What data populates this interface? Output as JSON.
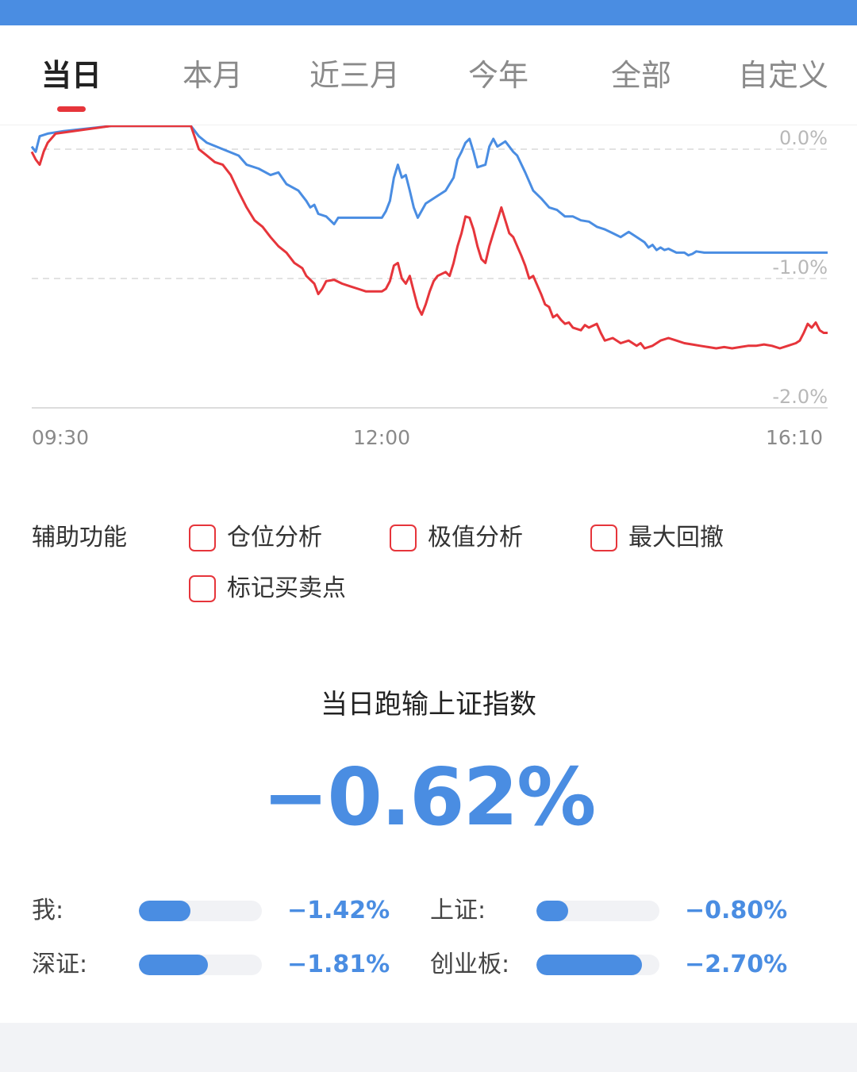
{
  "colors": {
    "accent_blue": "#4a8de2",
    "accent_red": "#e6353b",
    "top_bar": "#4a8de2"
  },
  "tabs": [
    {
      "label": "当日",
      "active": true
    },
    {
      "label": "本月",
      "active": false
    },
    {
      "label": "近三月",
      "active": false
    },
    {
      "label": "今年",
      "active": false
    },
    {
      "label": "全部",
      "active": false
    },
    {
      "label": "自定义",
      "active": false
    }
  ],
  "chart_data": {
    "type": "line",
    "x_ticks": [
      "09:30",
      "12:00",
      "16:10"
    ],
    "y_ticks": [
      "0.0%",
      "-1.0%",
      "-2.0%"
    ],
    "ylim": [
      -2.0,
      0.1
    ],
    "grid": true,
    "series": [
      {
        "color": "#4a8de2",
        "points": [
          [
            0.0,
            0.02
          ],
          [
            0.005,
            -0.02
          ],
          [
            0.01,
            0.1
          ],
          [
            0.02,
            0.12
          ],
          [
            0.04,
            0.14
          ],
          [
            0.1,
            0.18
          ],
          [
            0.2,
            0.18
          ],
          [
            0.21,
            0.1
          ],
          [
            0.22,
            0.05
          ],
          [
            0.24,
            0.0
          ],
          [
            0.26,
            -0.05
          ],
          [
            0.27,
            -0.12
          ],
          [
            0.285,
            -0.15
          ],
          [
            0.3,
            -0.2
          ],
          [
            0.31,
            -0.18
          ],
          [
            0.32,
            -0.27
          ],
          [
            0.335,
            -0.32
          ],
          [
            0.345,
            -0.4
          ],
          [
            0.35,
            -0.45
          ],
          [
            0.355,
            -0.43
          ],
          [
            0.36,
            -0.5
          ],
          [
            0.37,
            -0.52
          ],
          [
            0.38,
            -0.58
          ],
          [
            0.385,
            -0.53
          ],
          [
            0.44,
            -0.53
          ],
          [
            0.445,
            -0.48
          ],
          [
            0.45,
            -0.4
          ],
          [
            0.455,
            -0.22
          ],
          [
            0.46,
            -0.12
          ],
          [
            0.465,
            -0.22
          ],
          [
            0.47,
            -0.2
          ],
          [
            0.475,
            -0.32
          ],
          [
            0.48,
            -0.45
          ],
          [
            0.485,
            -0.53
          ],
          [
            0.495,
            -0.42
          ],
          [
            0.51,
            -0.36
          ],
          [
            0.52,
            -0.32
          ],
          [
            0.53,
            -0.22
          ],
          [
            0.535,
            -0.08
          ],
          [
            0.54,
            -0.02
          ],
          [
            0.545,
            0.05
          ],
          [
            0.55,
            0.08
          ],
          [
            0.555,
            -0.02
          ],
          [
            0.56,
            -0.14
          ],
          [
            0.57,
            -0.12
          ],
          [
            0.575,
            0.02
          ],
          [
            0.58,
            0.08
          ],
          [
            0.585,
            0.02
          ],
          [
            0.59,
            0.04
          ],
          [
            0.595,
            0.06
          ],
          [
            0.6,
            0.02
          ],
          [
            0.605,
            -0.02
          ],
          [
            0.61,
            -0.05
          ],
          [
            0.62,
            -0.18
          ],
          [
            0.63,
            -0.32
          ],
          [
            0.64,
            -0.38
          ],
          [
            0.65,
            -0.45
          ],
          [
            0.66,
            -0.47
          ],
          [
            0.67,
            -0.52
          ],
          [
            0.68,
            -0.52
          ],
          [
            0.69,
            -0.55
          ],
          [
            0.7,
            -0.56
          ],
          [
            0.71,
            -0.6
          ],
          [
            0.72,
            -0.62
          ],
          [
            0.73,
            -0.65
          ],
          [
            0.74,
            -0.68
          ],
          [
            0.75,
            -0.64
          ],
          [
            0.76,
            -0.68
          ],
          [
            0.77,
            -0.72
          ],
          [
            0.775,
            -0.76
          ],
          [
            0.78,
            -0.74
          ],
          [
            0.785,
            -0.78
          ],
          [
            0.79,
            -0.76
          ],
          [
            0.795,
            -0.78
          ],
          [
            0.8,
            -0.77
          ],
          [
            0.81,
            -0.8
          ],
          [
            0.82,
            -0.8
          ],
          [
            0.825,
            -0.82
          ],
          [
            0.83,
            -0.81
          ],
          [
            0.835,
            -0.79
          ],
          [
            0.845,
            -0.8
          ],
          [
            0.85,
            -0.8
          ],
          [
            1.0,
            -0.8
          ]
        ]
      },
      {
        "color": "#e6353b",
        "points": [
          [
            0.0,
            -0.02
          ],
          [
            0.005,
            -0.08
          ],
          [
            0.01,
            -0.12
          ],
          [
            0.015,
            -0.02
          ],
          [
            0.02,
            0.05
          ],
          [
            0.03,
            0.12
          ],
          [
            0.1,
            0.18
          ],
          [
            0.2,
            0.18
          ],
          [
            0.21,
            0.0
          ],
          [
            0.22,
            -0.05
          ],
          [
            0.23,
            -0.1
          ],
          [
            0.24,
            -0.12
          ],
          [
            0.25,
            -0.2
          ],
          [
            0.26,
            -0.33
          ],
          [
            0.27,
            -0.45
          ],
          [
            0.28,
            -0.55
          ],
          [
            0.29,
            -0.6
          ],
          [
            0.3,
            -0.68
          ],
          [
            0.31,
            -0.75
          ],
          [
            0.32,
            -0.8
          ],
          [
            0.33,
            -0.88
          ],
          [
            0.34,
            -0.92
          ],
          [
            0.345,
            -0.98
          ],
          [
            0.355,
            -1.04
          ],
          [
            0.36,
            -1.12
          ],
          [
            0.365,
            -1.08
          ],
          [
            0.37,
            -1.02
          ],
          [
            0.38,
            -1.01
          ],
          [
            0.39,
            -1.04
          ],
          [
            0.4,
            -1.06
          ],
          [
            0.41,
            -1.08
          ],
          [
            0.42,
            -1.1
          ],
          [
            0.43,
            -1.1
          ],
          [
            0.44,
            -1.1
          ],
          [
            0.445,
            -1.08
          ],
          [
            0.45,
            -1.02
          ],
          [
            0.455,
            -0.9
          ],
          [
            0.46,
            -0.88
          ],
          [
            0.465,
            -1.0
          ],
          [
            0.47,
            -1.04
          ],
          [
            0.475,
            -0.98
          ],
          [
            0.48,
            -1.1
          ],
          [
            0.485,
            -1.22
          ],
          [
            0.49,
            -1.28
          ],
          [
            0.495,
            -1.2
          ],
          [
            0.5,
            -1.1
          ],
          [
            0.505,
            -1.02
          ],
          [
            0.51,
            -0.98
          ],
          [
            0.52,
            -0.95
          ],
          [
            0.525,
            -0.98
          ],
          [
            0.53,
            -0.88
          ],
          [
            0.535,
            -0.75
          ],
          [
            0.54,
            -0.65
          ],
          [
            0.545,
            -0.52
          ],
          [
            0.55,
            -0.53
          ],
          [
            0.555,
            -0.62
          ],
          [
            0.56,
            -0.75
          ],
          [
            0.565,
            -0.85
          ],
          [
            0.57,
            -0.88
          ],
          [
            0.575,
            -0.75
          ],
          [
            0.58,
            -0.65
          ],
          [
            0.585,
            -0.55
          ],
          [
            0.59,
            -0.45
          ],
          [
            0.595,
            -0.55
          ],
          [
            0.6,
            -0.65
          ],
          [
            0.605,
            -0.68
          ],
          [
            0.61,
            -0.75
          ],
          [
            0.615,
            -0.82
          ],
          [
            0.62,
            -0.9
          ],
          [
            0.625,
            -1.0
          ],
          [
            0.63,
            -0.98
          ],
          [
            0.635,
            -1.05
          ],
          [
            0.64,
            -1.12
          ],
          [
            0.645,
            -1.2
          ],
          [
            0.65,
            -1.22
          ],
          [
            0.655,
            -1.3
          ],
          [
            0.66,
            -1.28
          ],
          [
            0.665,
            -1.32
          ],
          [
            0.67,
            -1.35
          ],
          [
            0.675,
            -1.34
          ],
          [
            0.68,
            -1.38
          ],
          [
            0.69,
            -1.4
          ],
          [
            0.695,
            -1.36
          ],
          [
            0.7,
            -1.38
          ],
          [
            0.71,
            -1.35
          ],
          [
            0.715,
            -1.42
          ],
          [
            0.72,
            -1.48
          ],
          [
            0.73,
            -1.46
          ],
          [
            0.74,
            -1.5
          ],
          [
            0.75,
            -1.48
          ],
          [
            0.76,
            -1.52
          ],
          [
            0.765,
            -1.5
          ],
          [
            0.77,
            -1.54
          ],
          [
            0.78,
            -1.52
          ],
          [
            0.785,
            -1.5
          ],
          [
            0.79,
            -1.48
          ],
          [
            0.8,
            -1.46
          ],
          [
            0.81,
            -1.48
          ],
          [
            0.82,
            -1.5
          ],
          [
            0.83,
            -1.51
          ],
          [
            0.84,
            -1.52
          ],
          [
            0.85,
            -1.53
          ],
          [
            0.86,
            -1.54
          ],
          [
            0.87,
            -1.53
          ],
          [
            0.88,
            -1.54
          ],
          [
            0.89,
            -1.53
          ],
          [
            0.9,
            -1.52
          ],
          [
            0.91,
            -1.52
          ],
          [
            0.92,
            -1.51
          ],
          [
            0.93,
            -1.52
          ],
          [
            0.94,
            -1.54
          ],
          [
            0.95,
            -1.52
          ],
          [
            0.96,
            -1.5
          ],
          [
            0.965,
            -1.48
          ],
          [
            0.97,
            -1.42
          ],
          [
            0.975,
            -1.35
          ],
          [
            0.98,
            -1.38
          ],
          [
            0.985,
            -1.34
          ],
          [
            0.99,
            -1.4
          ],
          [
            0.995,
            -1.42
          ],
          [
            1.0,
            -1.42
          ]
        ]
      }
    ]
  },
  "aux": {
    "label": "辅助功能",
    "options": [
      {
        "label": "仓位分析",
        "checked": false
      },
      {
        "label": "极值分析",
        "checked": false
      },
      {
        "label": "最大回撤",
        "checked": false
      },
      {
        "label": "标记买卖点",
        "checked": false
      }
    ]
  },
  "summary": {
    "title": "当日跑输上证指数",
    "value": "−0.62%"
  },
  "comparisons": [
    {
      "label": "我:",
      "value": "−1.42%",
      "fill": 0.42
    },
    {
      "label": "上证:",
      "value": "−0.80%",
      "fill": 0.26
    },
    {
      "label": "深证:",
      "value": "−1.81%",
      "fill": 0.56
    },
    {
      "label": "创业板:",
      "value": "−2.70%",
      "fill": 0.86
    }
  ]
}
